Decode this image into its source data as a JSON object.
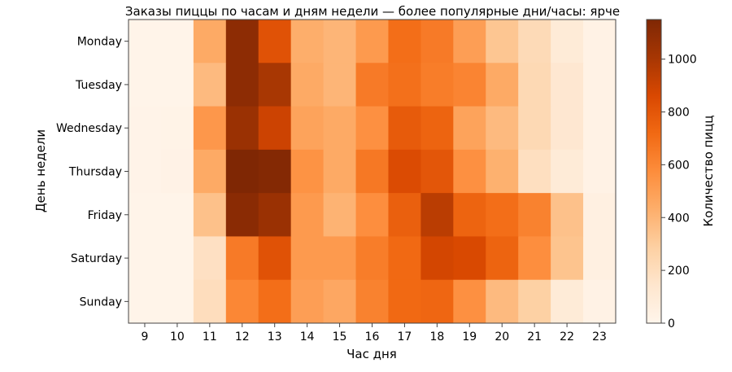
{
  "chart_data": {
    "type": "heatmap",
    "title": "Заказы пиццы по часам и дням недели — более популярные дни/часы: ярче",
    "xlabel": "Час дня",
    "ylabel": "День недели",
    "x": [
      "9",
      "10",
      "11",
      "12",
      "13",
      "14",
      "15",
      "16",
      "17",
      "18",
      "19",
      "20",
      "21",
      "22",
      "23"
    ],
    "y": [
      "Monday",
      "Tuesday",
      "Wednesday",
      "Thursday",
      "Friday",
      "Saturday",
      "Sunday"
    ],
    "values": [
      [
        10,
        10,
        450,
        1100,
        820,
        430,
        400,
        520,
        700,
        650,
        500,
        330,
        220,
        100,
        30
      ],
      [
        10,
        10,
        380,
        1100,
        1000,
        450,
        400,
        650,
        690,
        640,
        610,
        450,
        230,
        130,
        30
      ],
      [
        15,
        20,
        530,
        1050,
        900,
        480,
        450,
        560,
        780,
        740,
        480,
        380,
        230,
        130,
        30
      ],
      [
        15,
        25,
        450,
        1150,
        1130,
        550,
        450,
        660,
        850,
        800,
        560,
        420,
        190,
        100,
        30
      ],
      [
        10,
        10,
        350,
        1110,
        1050,
        520,
        410,
        570,
        760,
        950,
        740,
        700,
        620,
        350,
        50
      ],
      [
        10,
        10,
        180,
        650,
        820,
        520,
        520,
        640,
        720,
        880,
        860,
        740,
        570,
        340,
        50
      ],
      [
        10,
        10,
        200,
        600,
        700,
        500,
        460,
        620,
        720,
        730,
        560,
        380,
        280,
        100,
        30
      ]
    ],
    "colormap": "Oranges",
    "vmin": 0,
    "vmax": 1150,
    "colorbar": {
      "label": "Количество пицц",
      "ticks": [
        "0",
        "200",
        "400",
        "600",
        "800",
        "1000"
      ]
    }
  }
}
